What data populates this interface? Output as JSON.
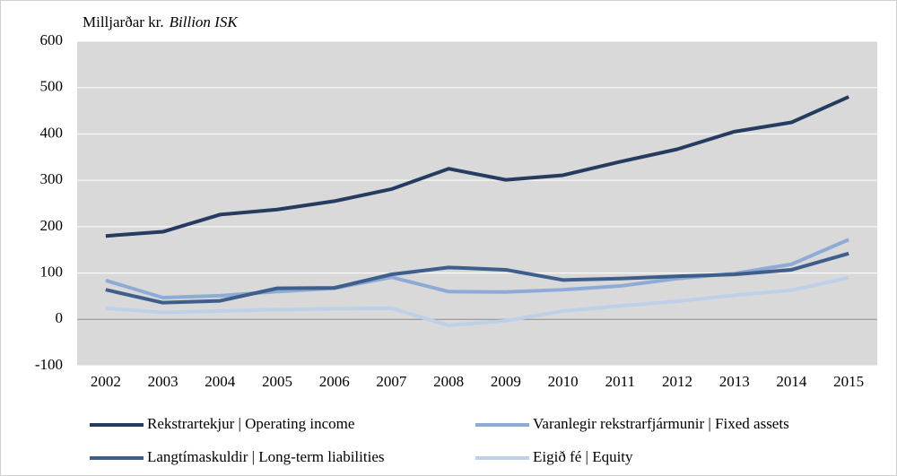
{
  "chart_data": {
    "type": "line",
    "y_label": "Milljarðar kr.",
    "y_label_en": "Billion ISK",
    "categories": [
      "2002",
      "2003",
      "2004",
      "2005",
      "2006",
      "2007",
      "2008",
      "2009",
      "2010",
      "2011",
      "2012",
      "2013",
      "2014",
      "2015"
    ],
    "series": [
      {
        "name": "Rekstrartekjur | Operating income",
        "color": "#253b5f",
        "values": [
          180,
          189,
          226,
          237,
          255,
          281,
          325,
          301,
          311,
          340,
          367,
          405,
          425,
          480
        ]
      },
      {
        "name": "Varanlegir rekstrarfjármunir | Fixed assets",
        "color": "#8eabd5",
        "values": [
          84,
          47,
          51,
          60,
          67,
          91,
          60,
          59,
          64,
          72,
          88,
          99,
          119,
          172
        ]
      },
      {
        "name": "Langtímaskuldir | Long-term liabilities",
        "color": "#3e5e8b",
        "values": [
          64,
          36,
          40,
          67,
          68,
          97,
          112,
          107,
          85,
          88,
          93,
          97,
          107,
          142
        ]
      },
      {
        "name": "Eigið fé | Equity",
        "color": "#bdd0e8",
        "values": [
          24,
          15,
          18,
          21,
          23,
          24,
          -13,
          -3,
          18,
          29,
          39,
          52,
          63,
          90
        ]
      }
    ],
    "ylim": [
      -100,
      600
    ],
    "yticks": [
      -100,
      0,
      100,
      200,
      300,
      400,
      500,
      600
    ],
    "grid": true,
    "plot_background": "#d9d9d9",
    "legend": "bottom"
  }
}
